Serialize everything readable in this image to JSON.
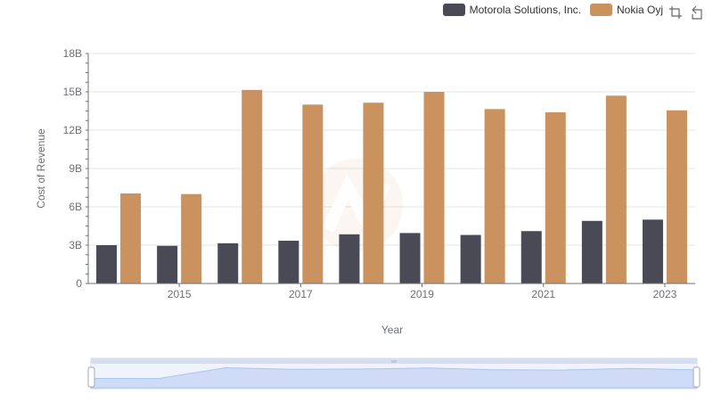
{
  "chart_data": {
    "type": "bar",
    "xlabel": "Year",
    "ylabel": "Cost of Revenue",
    "ylim": [
      0,
      18000000000
    ],
    "y_ticks": [
      "0",
      "3B",
      "6B",
      "9B",
      "12B",
      "15B",
      "18B"
    ],
    "y_tick_values": [
      0,
      3000000000,
      6000000000,
      9000000000,
      12000000000,
      15000000000,
      18000000000
    ],
    "categories": [
      "2014",
      "2015",
      "2016",
      "2017",
      "2018",
      "2019",
      "2020",
      "2021",
      "2022",
      "2023"
    ],
    "x_tick_labels": [
      "2015",
      "2017",
      "2019",
      "2021",
      "2023"
    ],
    "grid": true,
    "legend_position": "top-right",
    "series": [
      {
        "name": "Motorola Solutions, Inc.",
        "color": "#4a4a56",
        "values": [
          3000000000,
          2950000000,
          3150000000,
          3350000000,
          3850000000,
          3950000000,
          3800000000,
          4100000000,
          4900000000,
          5000000000
        ]
      },
      {
        "name": "Nokia Oyj",
        "color": "#c9925e",
        "values": [
          7050000000,
          7000000000,
          15150000000,
          14000000000,
          14150000000,
          15000000000,
          13650000000,
          13400000000,
          14700000000,
          13550000000
        ]
      }
    ]
  },
  "toolbox": {
    "zoom_icon": "zoom-icon",
    "restore_icon": "restore-icon"
  }
}
